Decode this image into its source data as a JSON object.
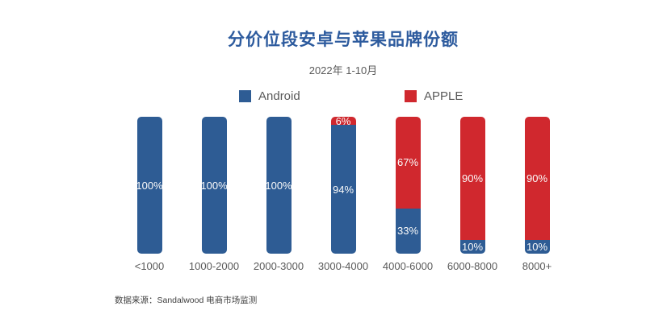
{
  "chart_data": {
    "type": "bar",
    "stacked": true,
    "orientation": "vertical",
    "title": "分价位段安卓与苹果品牌份额",
    "subtitle": "2022年 1-10月",
    "categories": [
      "<1000",
      "1000-2000",
      "2000-3000",
      "3000-4000",
      "4000-6000",
      "6000-8000",
      "8000+"
    ],
    "series": [
      {
        "name": "Android",
        "color": "#2e5c94",
        "values": [
          100,
          100,
          100,
          94,
          33,
          10,
          10
        ]
      },
      {
        "name": "APPLE",
        "color": "#d0282e",
        "values": [
          0,
          0,
          0,
          6,
          67,
          90,
          90
        ]
      }
    ],
    "value_label_format": "{value}%",
    "ylim": [
      0,
      100
    ],
    "unit": "percent",
    "grid": false,
    "axes_shown": false,
    "legend_position": "top"
  },
  "footer": {
    "source": "数据来源：Sandalwood 电商市场监测"
  },
  "colors": {
    "android": "#2e5c94",
    "apple": "#d0282e",
    "title_text": "#2d5b9e",
    "axis_text": "#595959",
    "value_text": "#fafafa",
    "source_text": "#3f3f3f",
    "background": "#ffffff"
  }
}
